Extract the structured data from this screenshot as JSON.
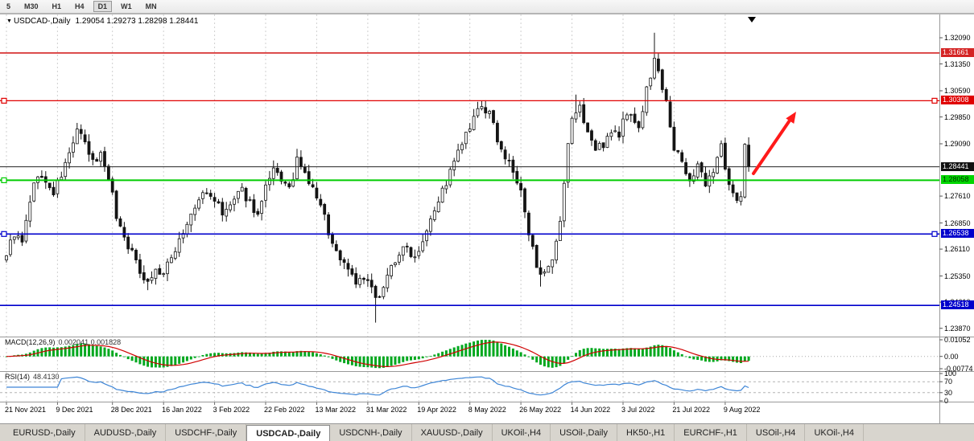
{
  "toolbar": {
    "timeframes": [
      {
        "label": "5",
        "active": false
      },
      {
        "label": "M30",
        "active": false
      },
      {
        "label": "H1",
        "active": false
      },
      {
        "label": "H4",
        "active": false
      },
      {
        "label": "D1",
        "active": true
      },
      {
        "label": "W1",
        "active": false
      },
      {
        "label": "MN",
        "active": false
      }
    ]
  },
  "chart": {
    "marker_icon": "▼",
    "symbol_label": "USDCAD-,Daily",
    "ohlc_text": "1.29054 1.29273 1.28298 1.28441",
    "axis": {
      "price_ticks": [
        "1.32090",
        "1.31350",
        "1.30590",
        "1.29850",
        "1.29090",
        "1.27610",
        "1.26850",
        "1.26110",
        "1.25350",
        "1.24610",
        "1.23870"
      ]
    },
    "levels": [
      {
        "price": 1.31661,
        "label": "1.31661",
        "color": "#d42424",
        "box_bg": "#d42424",
        "box_fg": "#ffffff",
        "width": 1.6,
        "handles": "none"
      },
      {
        "price": 1.30308,
        "label": "1.30308",
        "color": "#e00000",
        "box_bg": "#e00000",
        "box_fg": "#ffffff",
        "width": 1.2,
        "handles": "both"
      },
      {
        "price": 1.28441,
        "label": "1.28441",
        "color": "#222222",
        "box_bg": "#111111",
        "box_fg": "#ffffff",
        "width": 1,
        "handles": "none"
      },
      {
        "price": 1.28058,
        "label": "1.28058",
        "color": "#00cc00",
        "box_bg": "#00d500",
        "box_fg": "#003300",
        "width": 2,
        "handles": "left"
      },
      {
        "price": 1.26538,
        "label": "1.26538",
        "color": "#0000cc",
        "box_bg": "#0000cc",
        "box_fg": "#ffffff",
        "width": 1.6,
        "handles": "both"
      },
      {
        "price": 1.24518,
        "label": "1.24518",
        "color": "#0000cc",
        "box_bg": "#0000cc",
        "box_fg": "#ffffff",
        "width": 1.6,
        "handles": "none"
      }
    ],
    "arrow": {
      "color": "#ff1a1a"
    },
    "dates": [
      "21 Nov 2021",
      "9 Dec 2021",
      "28 Dec 2021",
      "16 Jan 2022",
      "3 Feb 2022",
      "22 Feb 2022",
      "13 Mar 2022",
      "31 Mar 2022",
      "19 Apr 2022",
      "8 May 2022",
      "26 May 2022",
      "14 Jun 2022",
      "3 Jul 2022",
      "21 Jul 2022",
      "9 Aug 2022"
    ]
  },
  "macd": {
    "label": "MACD(12,26,9)",
    "values": "0.002041 0.001828",
    "axis": [
      "0.01052",
      "0.00",
      "-0.00774"
    ]
  },
  "rsi": {
    "label": "RSI(14)",
    "value": "48.4130",
    "axis": [
      "100",
      "70",
      "30",
      "0"
    ],
    "axis_values": [
      100,
      70,
      30,
      0
    ]
  },
  "tabs": [
    {
      "label": "EURUSD-,Daily",
      "active": false
    },
    {
      "label": "AUDUSD-,Daily",
      "active": false
    },
    {
      "label": "USDCHF-,Daily",
      "active": false
    },
    {
      "label": "USDCAD-,Daily",
      "active": true
    },
    {
      "label": "USDCNH-,Daily",
      "active": false
    },
    {
      "label": "XAUUSD-,Daily",
      "active": false
    },
    {
      "label": "UKOil-,H4",
      "active": false
    },
    {
      "label": "USOil-,Daily",
      "active": false
    },
    {
      "label": "HK50-,H1",
      "active": false
    },
    {
      "label": "EURCHF-,H1",
      "active": false
    },
    {
      "label": "USOil-,H4",
      "active": false
    },
    {
      "label": "UKOil-,H4",
      "active": false
    }
  ],
  "chart_data": {
    "type": "candlestick",
    "symbol": "USDCAD",
    "timeframe": "Daily",
    "title_ohlc": {
      "open": 1.29054,
      "high": 1.29273,
      "low": 1.28298,
      "close": 1.28441
    },
    "bar_count": 190,
    "x_axis_dates": [
      "21 Nov 2021",
      "9 Dec 2021",
      "28 Dec 2021",
      "16 Jan 2022",
      "3 Feb 2022",
      "22 Feb 2022",
      "13 Mar 2022",
      "31 Mar 2022",
      "19 Apr 2022",
      "8 May 2022",
      "26 May 2022",
      "14 Jun 2022",
      "3 Jul 2022",
      "21 Jul 2022",
      "9 Aug 2022"
    ],
    "date_bar_indices": [
      0,
      13,
      27,
      40,
      53,
      66,
      79,
      92,
      105,
      118,
      131,
      144,
      157,
      170,
      183
    ],
    "y_axis": {
      "tick_step": 0.0074,
      "top_tick": 1.3209,
      "bottom_tick": 1.2387
    },
    "levels": {
      "resistance_red": [
        1.31661,
        1.30308
      ],
      "current_black": 1.28441,
      "support_green": 1.28058,
      "support_blue": [
        1.26538,
        1.24518
      ]
    },
    "close_anchors": [
      [
        0,
        1.26
      ],
      [
        2,
        1.2655
      ],
      [
        4,
        1.2625
      ],
      [
        6,
        1.275
      ],
      [
        8,
        1.2825
      ],
      [
        10,
        1.2795
      ],
      [
        12,
        1.277
      ],
      [
        14,
        1.282
      ],
      [
        16,
        1.288
      ],
      [
        18,
        1.295
      ],
      [
        20,
        1.2905
      ],
      [
        22,
        1.2855
      ],
      [
        24,
        1.288
      ],
      [
        26,
        1.282
      ],
      [
        28,
        1.2705
      ],
      [
        30,
        1.2645
      ],
      [
        32,
        1.26
      ],
      [
        34,
        1.255
      ],
      [
        36,
        1.252
      ],
      [
        38,
        1.255
      ],
      [
        40,
        1.254
      ],
      [
        42,
        1.2585
      ],
      [
        44,
        1.264
      ],
      [
        46,
        1.268
      ],
      [
        48,
        1.2725
      ],
      [
        50,
        1.277
      ],
      [
        53,
        1.2755
      ],
      [
        55,
        1.2705
      ],
      [
        57,
        1.2735
      ],
      [
        60,
        1.2775
      ],
      [
        62,
        1.2745
      ],
      [
        64,
        1.2705
      ],
      [
        66,
        1.278
      ],
      [
        68,
        1.283
      ],
      [
        70,
        1.281
      ],
      [
        72,
        1.2775
      ],
      [
        74,
        1.286
      ],
      [
        76,
        1.282
      ],
      [
        79,
        1.276
      ],
      [
        81,
        1.27
      ],
      [
        83,
        1.2625
      ],
      [
        85,
        1.2585
      ],
      [
        87,
        1.256
      ],
      [
        89,
        1.252
      ],
      [
        92,
        1.252
      ],
      [
        94,
        1.2465
      ],
      [
        96,
        1.251
      ],
      [
        98,
        1.256
      ],
      [
        100,
        1.26
      ],
      [
        102,
        1.2615
      ],
      [
        104,
        1.259
      ],
      [
        106,
        1.264
      ],
      [
        108,
        1.2705
      ],
      [
        110,
        1.275
      ],
      [
        112,
        1.28
      ],
      [
        114,
        1.2855
      ],
      [
        116,
        1.291
      ],
      [
        118,
        1.295
      ],
      [
        120,
        1.3
      ],
      [
        121,
        1.3015
      ],
      [
        123,
        1.299
      ],
      [
        125,
        1.2925
      ],
      [
        127,
        1.287
      ],
      [
        129,
        1.283
      ],
      [
        131,
        1.277
      ],
      [
        133,
        1.265
      ],
      [
        135,
        1.257
      ],
      [
        137,
        1.2535
      ],
      [
        139,
        1.257
      ],
      [
        141,
        1.268
      ],
      [
        143,
        1.29
      ],
      [
        144,
        1.2985
      ],
      [
        146,
        1.301
      ],
      [
        148,
        1.2945
      ],
      [
        150,
        1.289
      ],
      [
        152,
        1.291
      ],
      [
        154,
        1.295
      ],
      [
        156,
        1.293
      ],
      [
        157,
        1.2975
      ],
      [
        159,
        1.3
      ],
      [
        161,
        1.295
      ],
      [
        163,
        1.306
      ],
      [
        165,
        1.315
      ],
      [
        166,
        1.311
      ],
      [
        168,
        1.304
      ],
      [
        170,
        1.289
      ],
      [
        172,
        1.286
      ],
      [
        174,
        1.2805
      ],
      [
        176,
        1.2845
      ],
      [
        178,
        1.279
      ],
      [
        180,
        1.2825
      ],
      [
        181,
        1.288
      ],
      [
        182,
        1.292
      ],
      [
        183,
        1.2845
      ],
      [
        184,
        1.279
      ],
      [
        186,
        1.2748
      ],
      [
        187,
        1.276
      ],
      [
        188,
        1.2907
      ],
      [
        189,
        1.28441
      ]
    ],
    "spike_extremes": {
      "18": {
        "hi": 1.2968
      },
      "36": {
        "lo": 1.2495
      },
      "68": {
        "hi": 1.2862
      },
      "74": {
        "hi": 1.2895
      },
      "94": {
        "lo": 1.2403
      },
      "121": {
        "hi": 1.3031
      },
      "136": {
        "lo": 1.2505
      },
      "145": {
        "hi": 1.3048
      },
      "165": {
        "hi": 1.3223
      }
    },
    "indicators": {
      "macd": {
        "params": [
          12,
          26,
          9
        ],
        "main_value": 0.002041,
        "signal_value": 0.001828,
        "scale_max": 0.01052,
        "scale_min": -0.00774
      },
      "rsi": {
        "period": 14,
        "value": 48.413,
        "scale": [
          0,
          100
        ],
        "guides": [
          70,
          30
        ]
      }
    },
    "annotation_arrow": {
      "from_price": 1.283,
      "to_price": 1.3,
      "color": "#ff1a1a"
    }
  }
}
